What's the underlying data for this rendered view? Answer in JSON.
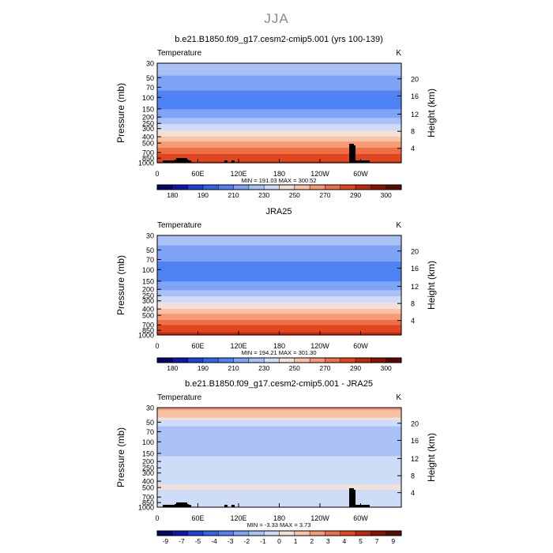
{
  "figure": {
    "suptitle": "JJA"
  },
  "chart_data": [
    {
      "type": "heatmap",
      "title": "b.e21.B1850.f09_g17.cesm2-cmip5.001 (yrs 100-139)",
      "variable": "Temperature",
      "units": "K",
      "ylabel": "Pressure (mb)",
      "ylabel_right": "Height (km)",
      "x_ticks": [
        "0",
        "60E",
        "120E",
        "180",
        "120W",
        "60W"
      ],
      "y_ticks": [
        "30",
        "50",
        "70",
        "100",
        "150",
        "200",
        "250",
        "300",
        "400",
        "500",
        "700",
        "850",
        "1000"
      ],
      "y_ticks_right": [
        "20",
        "16",
        "12",
        "8",
        "4"
      ],
      "stats": "MIN = 191.03   MAX = 300.52",
      "min": 191.03,
      "max": 300.52,
      "colorbar_labels": [
        "180",
        "190",
        "210",
        "230",
        "250",
        "270",
        "290",
        "300"
      ],
      "levels": [
        180,
        185,
        190,
        200,
        210,
        220,
        230,
        240,
        250,
        260,
        270,
        280,
        290,
        295,
        300
      ],
      "colors": [
        "#04056b",
        "#0a17b0",
        "#1a44d6",
        "#2f67ec",
        "#4f82f2",
        "#7fa3f5",
        "#a9c1f6",
        "#cfdcf7",
        "#f1e1d6",
        "#f8c2a6",
        "#f59a72",
        "#ef6e45",
        "#e2461e",
        "#c02a0b",
        "#8b1205",
        "#5a0a02"
      ],
      "profile": [
        {
          "p": 30,
          "t": 226
        },
        {
          "p": 50,
          "t": 219
        },
        {
          "p": 70,
          "t": 212
        },
        {
          "p": 100,
          "t": 205
        },
        {
          "p": 150,
          "t": 209
        },
        {
          "p": 200,
          "t": 218
        },
        {
          "p": 250,
          "t": 228
        },
        {
          "p": 300,
          "t": 236
        },
        {
          "p": 400,
          "t": 250
        },
        {
          "p": 500,
          "t": 262
        },
        {
          "p": 700,
          "t": 278
        },
        {
          "p": 850,
          "t": 286
        },
        {
          "p": 1000,
          "t": 292
        }
      ],
      "topography": true
    },
    {
      "type": "heatmap",
      "title": "JRA25",
      "variable": "Temperature",
      "units": "K",
      "ylabel": "Pressure (mb)",
      "ylabel_right": "Height (km)",
      "x_ticks": [
        "0",
        "60E",
        "120E",
        "180",
        "120W",
        "60W"
      ],
      "y_ticks": [
        "30",
        "50",
        "70",
        "100",
        "150",
        "200",
        "250",
        "300",
        "400",
        "500",
        "700",
        "850",
        "1000"
      ],
      "y_ticks_right": [
        "20",
        "16",
        "12",
        "8",
        "4"
      ],
      "stats": "MIN = 194.21   MAX = 301.30",
      "min": 194.21,
      "max": 301.3,
      "colorbar_labels": [
        "180",
        "190",
        "210",
        "230",
        "250",
        "270",
        "290",
        "300"
      ],
      "levels": [
        180,
        185,
        190,
        200,
        210,
        220,
        230,
        240,
        250,
        260,
        270,
        280,
        290,
        295,
        300
      ],
      "colors": [
        "#04056b",
        "#0a17b0",
        "#1a44d6",
        "#2f67ec",
        "#4f82f2",
        "#7fa3f5",
        "#a9c1f6",
        "#cfdcf7",
        "#f1e1d6",
        "#f8c2a6",
        "#f59a72",
        "#ef6e45",
        "#e2461e",
        "#c02a0b",
        "#8b1205",
        "#5a0a02"
      ],
      "profile": [
        {
          "p": 30,
          "t": 225
        },
        {
          "p": 50,
          "t": 218
        },
        {
          "p": 70,
          "t": 211
        },
        {
          "p": 100,
          "t": 206
        },
        {
          "p": 150,
          "t": 210
        },
        {
          "p": 200,
          "t": 219
        },
        {
          "p": 250,
          "t": 229
        },
        {
          "p": 300,
          "t": 237
        },
        {
          "p": 400,
          "t": 251
        },
        {
          "p": 500,
          "t": 263
        },
        {
          "p": 700,
          "t": 279
        },
        {
          "p": 850,
          "t": 287
        },
        {
          "p": 1000,
          "t": 293
        }
      ],
      "topography": false
    },
    {
      "type": "heatmap",
      "title": "b.e21.B1850.f09_g17.cesm2-cmip5.001 - JRA25",
      "variable": "Temperature",
      "units": "K",
      "ylabel": "Pressure (mb)",
      "ylabel_right": "Height (km)",
      "x_ticks": [
        "0",
        "60E",
        "120E",
        "180",
        "120W",
        "60W"
      ],
      "y_ticks": [
        "30",
        "50",
        "70",
        "100",
        "150",
        "200",
        "250",
        "300",
        "400",
        "500",
        "700",
        "850",
        "1000"
      ],
      "y_ticks_right": [
        "20",
        "16",
        "12",
        "8",
        "4"
      ],
      "stats": "MIN =   -3.33   MAX =    3.73",
      "min": -3.33,
      "max": 3.73,
      "colorbar_labels": [
        "-9",
        "-7",
        "-5",
        "-4",
        "-3",
        "-2",
        "-1",
        "0",
        "1",
        "2",
        "3",
        "4",
        "5",
        "7",
        "9"
      ],
      "levels": [
        -9,
        -7,
        -5,
        -4,
        -3,
        -2,
        -1,
        0,
        1,
        2,
        3,
        4,
        5,
        7,
        9
      ],
      "colors": [
        "#04056b",
        "#0a17b0",
        "#1a44d6",
        "#2f67ec",
        "#4f82f2",
        "#7fa3f5",
        "#a9c1f6",
        "#cfdcf7",
        "#f1e1d6",
        "#f8c2a6",
        "#f59a72",
        "#ef6e45",
        "#e2461e",
        "#c02a0b",
        "#8b1205",
        "#5a0a02"
      ],
      "profile": [
        {
          "p": 30,
          "t": 2.2
        },
        {
          "p": 40,
          "t": 1.5
        },
        {
          "p": 50,
          "t": -0.5
        },
        {
          "p": 70,
          "t": -1.5
        },
        {
          "p": 100,
          "t": -1.7
        },
        {
          "p": 150,
          "t": -1.2
        },
        {
          "p": 200,
          "t": -0.5
        },
        {
          "p": 300,
          "t": -0.4
        },
        {
          "p": 400,
          "t": -0.5
        },
        {
          "p": 500,
          "t": 0.3
        },
        {
          "p": 600,
          "t": -0.5
        },
        {
          "p": 700,
          "t": -0.3
        },
        {
          "p": 850,
          "t": -0.4
        },
        {
          "p": 1000,
          "t": -0.2
        }
      ],
      "topography": true
    }
  ]
}
